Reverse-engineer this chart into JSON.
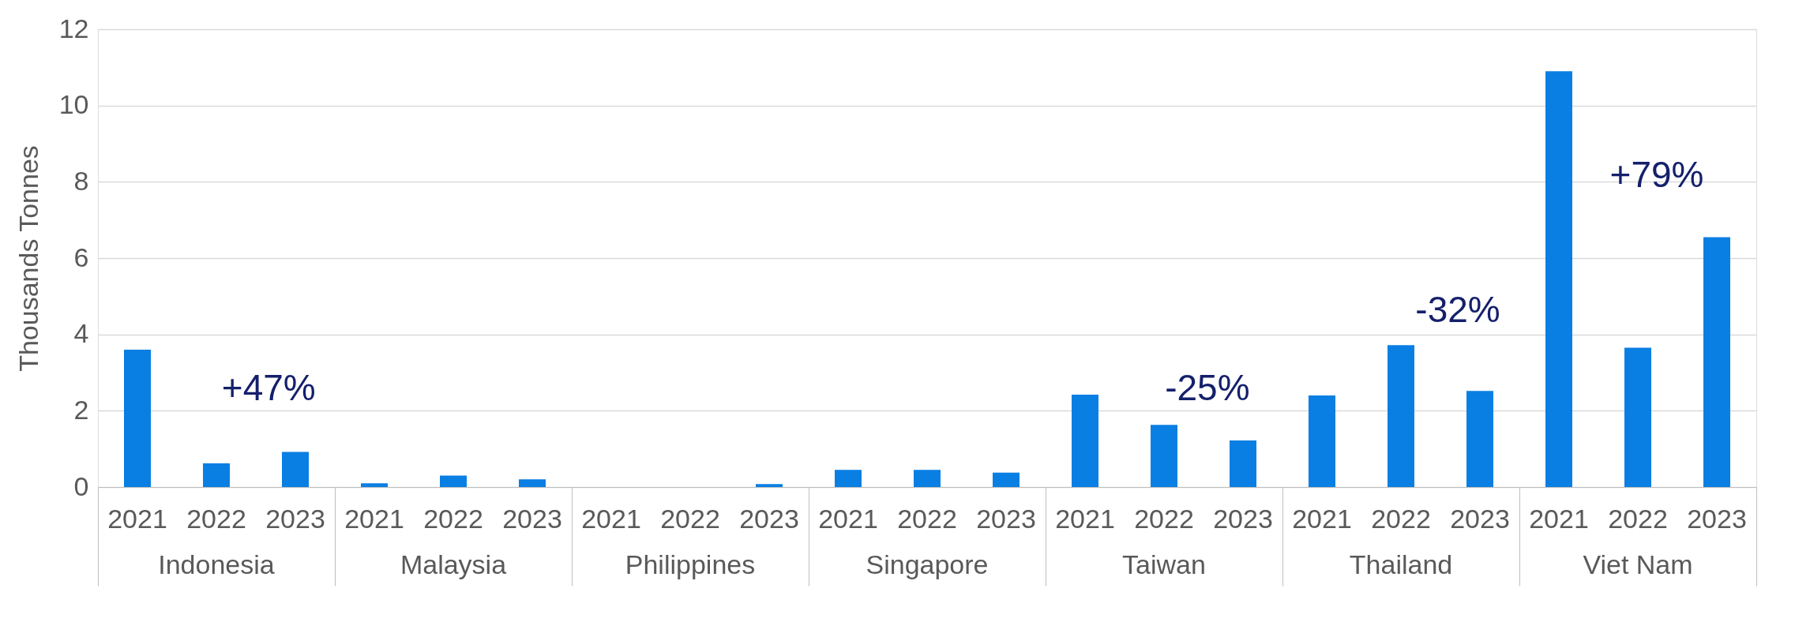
{
  "chart_data": {
    "type": "bar",
    "ylabel": "Thousands Tonnes",
    "categories": [
      "Indonesia",
      "Malaysia",
      "Philippines",
      "Singapore",
      "Taiwan",
      "Thailand",
      "Viet Nam"
    ],
    "series": [
      {
        "name": "2021",
        "color": "#0a7fe3",
        "values": [
          3.6,
          0.1,
          0,
          0.45,
          2.42,
          2.4,
          10.9
        ]
      },
      {
        "name": "2022",
        "color": "#0a7fe3",
        "values": [
          0.62,
          0.3,
          0,
          0.45,
          1.63,
          3.72,
          3.65
        ]
      },
      {
        "name": "2023",
        "color": "#0a7fe3",
        "values": [
          0.92,
          0.2,
          0.08,
          0.38,
          1.22,
          2.52,
          6.55
        ]
      }
    ],
    "ylim": [
      0,
      12
    ],
    "yticks": [
      0,
      2,
      4,
      6,
      8,
      10,
      12
    ],
    "grid": "y",
    "legend": false,
    "annotations": [
      "+47%",
      "-25%",
      "-32%",
      "+79%"
    ]
  }
}
